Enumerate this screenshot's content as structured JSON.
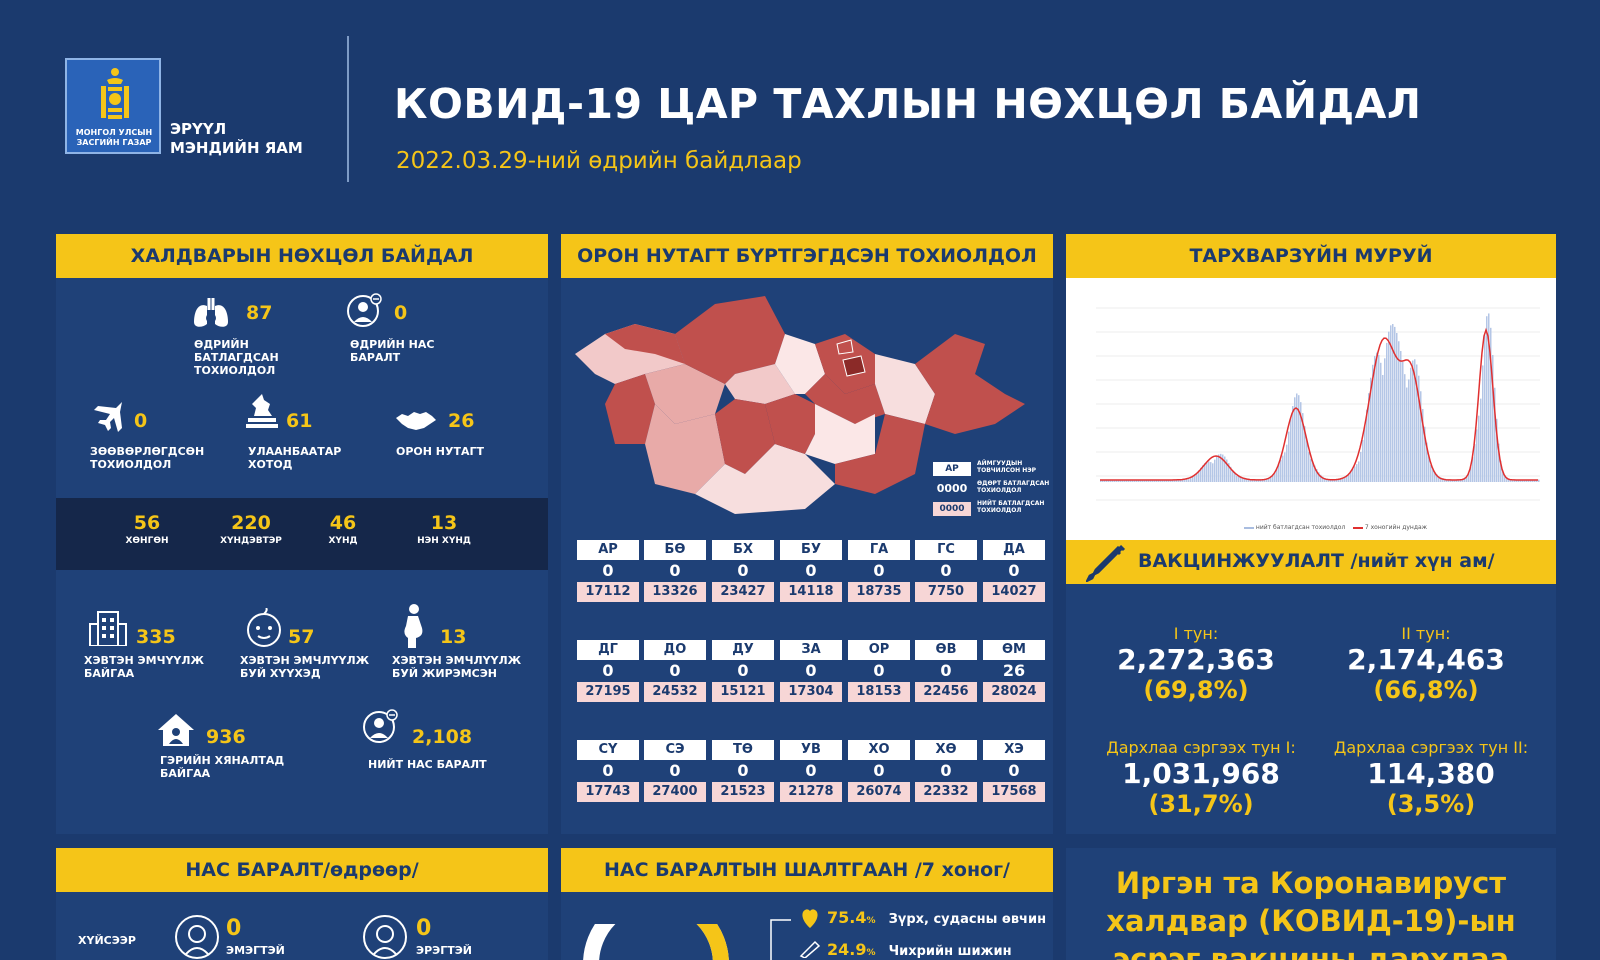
{
  "header": {
    "logo_text": "МОНГОЛ УЛСЫН ЗАСГИЙН ГАЗАР",
    "ministry_line1": "ЭРҮҮЛ",
    "ministry_line2": "МЭНДИЙН ЯАМ",
    "title": "КОВИД-19 ЦАР ТАХЛЫН НӨХЦӨЛ БАЙДАЛ",
    "subtitle": "2022.03.29-ний өдрийн байдлаар"
  },
  "infection": {
    "title": "ХАЛДВАРЫН НӨХЦӨЛ БАЙДАЛ",
    "daily_confirmed": {
      "value": "87",
      "label1": "ӨДРИЙН",
      "label2": "БАТЛАГДСАН",
      "label3": "ТОХИОЛДОЛ"
    },
    "daily_deaths": {
      "value": "0",
      "label1": "ӨДРИЙН НАС",
      "label2": "БАРАЛТ"
    },
    "imported": {
      "value": "0",
      "label1": "ЗӨӨВӨРЛӨГДСӨН",
      "label2": "ТОХИОЛДОЛ"
    },
    "ulaanbaatar": {
      "value": "61",
      "label1": "УЛААНБААТАР",
      "label2": "ХОТОД"
    },
    "local": {
      "value": "26",
      "label1": "ОРОН НУТАГТ"
    },
    "severity": [
      {
        "value": "56",
        "label": "ХӨНГӨН"
      },
      {
        "value": "220",
        "label": "ХҮНДЭВТЭР"
      },
      {
        "value": "46",
        "label": "ХҮНД"
      },
      {
        "value": "13",
        "label": "НЭН ХҮНД"
      }
    ],
    "hospitalized": {
      "value": "335",
      "label1": "ХЭВТЭН ЭМЧҮҮЛЖ",
      "label2": "БАЙГАА"
    },
    "children": {
      "value": "57",
      "label1": "ХЭВТЭН ЭМЧЛҮҮЛЖ",
      "label2": "БУЙ ХҮҮХЭД"
    },
    "pregnant": {
      "value": "13",
      "label1": "ХЭВТЭН ЭМЧЛҮҮЛЖ",
      "label2": "БУЙ ЖИРЭМСЭН"
    },
    "home": {
      "value": "936",
      "label1": "ГЭРИЙН ХЯНАЛТАД",
      "label2": "БАЙГАА"
    },
    "total_deaths": {
      "value": "2,108",
      "label1": "НИЙТ НАС БАРАЛТ"
    }
  },
  "map": {
    "title": "ОРОН НУТАГТ БҮРТГЭГДСЭН ТОХИОЛДОЛ",
    "legend_code": "АР",
    "legend_code_desc1": "АЙМГУУДЫН",
    "legend_code_desc2": "ТОВЧИЛСОН НЭР",
    "legend_daily": "0000",
    "legend_daily_desc1": "ӨДӨРТ БАТЛАГДСАН",
    "legend_daily_desc2": "ТОХИОЛДОЛ",
    "legend_total": "0000",
    "legend_total_desc1": "НИЙТ БАТЛАГДСАН",
    "legend_total_desc2": "ТОХИОЛДОЛ",
    "provinces": [
      {
        "code": "АР",
        "daily": "0",
        "total": "17112"
      },
      {
        "code": "БӨ",
        "daily": "0",
        "total": "13326"
      },
      {
        "code": "БХ",
        "daily": "0",
        "total": "23427"
      },
      {
        "code": "БУ",
        "daily": "0",
        "total": "14118"
      },
      {
        "code": "ГА",
        "daily": "0",
        "total": "18735"
      },
      {
        "code": "ГС",
        "daily": "0",
        "total": "7750"
      },
      {
        "code": "ДА",
        "daily": "0",
        "total": "14027"
      },
      {
        "code": "ДГ",
        "daily": "0",
        "total": "27195"
      },
      {
        "code": "ДО",
        "daily": "0",
        "total": "24532"
      },
      {
        "code": "ДУ",
        "daily": "0",
        "total": "15121"
      },
      {
        "code": "ЗА",
        "daily": "0",
        "total": "17304"
      },
      {
        "code": "ОР",
        "daily": "0",
        "total": "18153"
      },
      {
        "code": "ӨВ",
        "daily": "0",
        "total": "22456"
      },
      {
        "code": "ӨМ",
        "daily": "26",
        "total": "28024"
      },
      {
        "code": "СҮ",
        "daily": "0",
        "total": "17743"
      },
      {
        "code": "СЭ",
        "daily": "0",
        "total": "27400"
      },
      {
        "code": "ТӨ",
        "daily": "0",
        "total": "21523"
      },
      {
        "code": "УВ",
        "daily": "0",
        "total": "21278"
      },
      {
        "code": "ХО",
        "daily": "0",
        "total": "26074"
      },
      {
        "code": "ХӨ",
        "daily": "0",
        "total": "22332"
      },
      {
        "code": "ХЭ",
        "daily": "0",
        "total": "17568"
      }
    ]
  },
  "curve": {
    "title": "ТАРХВАРЗҮЙН МУРУЙ",
    "legend_bars": "нийт батлагдсан тохиолдол",
    "legend_line": "7 хоногийн дундаж"
  },
  "vaccine": {
    "title": "ВАКЦИНЖУУЛАЛТ /нийт хүн ам/",
    "dose1": {
      "label": "I тун:",
      "value": "2,272,363",
      "pct": "(69,8%)"
    },
    "dose2": {
      "label": "II тун:",
      "value": "2,174,463",
      "pct": "(66,8%)"
    },
    "booster1": {
      "label": "Дархлаа сэргээх тун I:",
      "value": "1,031,968",
      "pct": "(31,7%)"
    },
    "booster2": {
      "label": "Дархлаа сэргээх тун II:",
      "value": "114,380",
      "pct": "(3,5%)"
    }
  },
  "deaths_daily": {
    "title": "НАС БАРАЛТ/өдрөөр/",
    "by_gender": "ХҮЙСЭЭР",
    "female": {
      "value": "0",
      "label": "ЭМЭГТЭЙ"
    },
    "male": {
      "value": "0",
      "label": "ЭРЭГТЭЙ"
    }
  },
  "death_causes": {
    "title": "НАС БАРАЛТЫН ШАЛТГААН /7 хоног/",
    "items": [
      {
        "pct": "75.4",
        "unit": "%",
        "label": "Зүрх, судасны өвчин"
      },
      {
        "pct": "24.9",
        "unit": "%",
        "label": "Чихрийн шижин"
      }
    ]
  },
  "appeal": {
    "line1": "Иргэн та Коронавируст",
    "line2": "халдвар (КОВИД-19)-ын",
    "line3": "эсрэг вакцины дархлаа"
  },
  "colors": {
    "navy": "#1b3a6e",
    "panel": "#1f4178",
    "accent": "#f5c518",
    "map_dark": "#c0504d"
  }
}
